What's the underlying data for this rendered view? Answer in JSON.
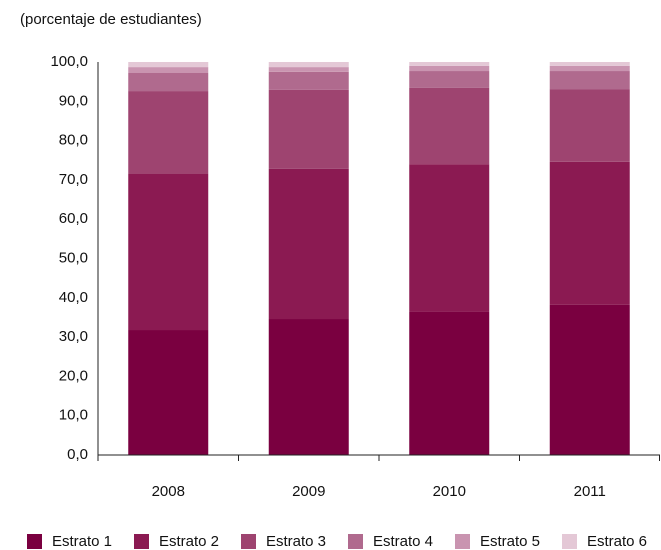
{
  "chart_data": {
    "type": "stacked_bar",
    "subtitle": "(porcentaje de estudiantes)",
    "categories": [
      "2008",
      "2009",
      "2010",
      "2011"
    ],
    "series": [
      {
        "name": "Estrato 1",
        "color": "#7a0040",
        "values": [
          31.8,
          34.6,
          36.4,
          38.2
        ]
      },
      {
        "name": "Estrato 2",
        "color": "#8b1a52",
        "values": [
          39.7,
          38.2,
          37.6,
          36.4
        ]
      },
      {
        "name": "Estrato 3",
        "color": "#9e4470",
        "values": [
          21.1,
          20.1,
          19.4,
          18.5
        ]
      },
      {
        "name": "Estrato 4",
        "color": "#b06a8e",
        "values": [
          4.6,
          4.6,
          4.3,
          4.6
        ]
      },
      {
        "name": "Estrato 5",
        "color": "#c994b0",
        "values": [
          1.5,
          1.2,
          1.3,
          1.3
        ]
      },
      {
        "name": "Estrato 6",
        "color": "#e4c8d6",
        "values": [
          1.3,
          1.3,
          1.0,
          1.0
        ]
      }
    ],
    "ylim": [
      0,
      100
    ],
    "yticks": [
      {
        "value": 0,
        "label": "0,0"
      },
      {
        "value": 10,
        "label": "10,0"
      },
      {
        "value": 20,
        "label": "20,0"
      },
      {
        "value": 30,
        "label": "30,0"
      },
      {
        "value": 40,
        "label": "40,0"
      },
      {
        "value": 50,
        "label": "50,0"
      },
      {
        "value": 60,
        "label": "60,0"
      },
      {
        "value": 70,
        "label": "70,0"
      },
      {
        "value": 80,
        "label": "80,0"
      },
      {
        "value": 90,
        "label": "90,0"
      },
      {
        "value": 100,
        "label": "100,0"
      }
    ],
    "grid": false,
    "legend": "bottom"
  }
}
